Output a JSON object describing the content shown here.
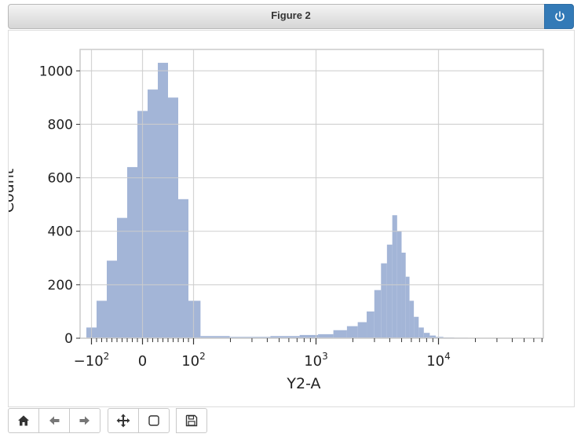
{
  "window": {
    "title": "Figure 2"
  },
  "toolbar": {
    "buttons": [
      "home-icon",
      "back-icon",
      "forward-icon",
      "pan-icon",
      "zoom-rect-icon",
      "save-icon"
    ]
  },
  "chart_data": {
    "type": "bar",
    "xlabel": "Y2-A",
    "ylabel": "Count",
    "xscale": "symlog",
    "ylim": [
      0,
      1080
    ],
    "yticks": [
      0,
      200,
      400,
      600,
      800,
      1000
    ],
    "xtick_labels": [
      "−10^2",
      "0",
      "10^2",
      "10^3",
      "10^4"
    ],
    "grid": true,
    "bar_color": "#a3b5d7",
    "series": [
      {
        "x_bin_centers": [
          "-100",
          "-80",
          "-60",
          "-40",
          "-20",
          "0",
          "20",
          "40",
          "60",
          "80",
          "100",
          "130",
          "300",
          "600",
          "900",
          "1200",
          "1600",
          "2000",
          "2400",
          "2800",
          "3200",
          "3600",
          "4000",
          "4400",
          "4800",
          "5200",
          "5600",
          "6000",
          "6600",
          "7200",
          "8000",
          "9000",
          "10000",
          "12000",
          "15000",
          "20000"
        ],
        "values": [
          40,
          140,
          290,
          450,
          640,
          850,
          930,
          1030,
          900,
          520,
          140,
          8,
          5,
          8,
          12,
          15,
          30,
          45,
          60,
          100,
          180,
          280,
          350,
          460,
          400,
          320,
          230,
          140,
          80,
          40,
          20,
          10,
          5,
          3,
          2,
          1
        ]
      }
    ]
  }
}
